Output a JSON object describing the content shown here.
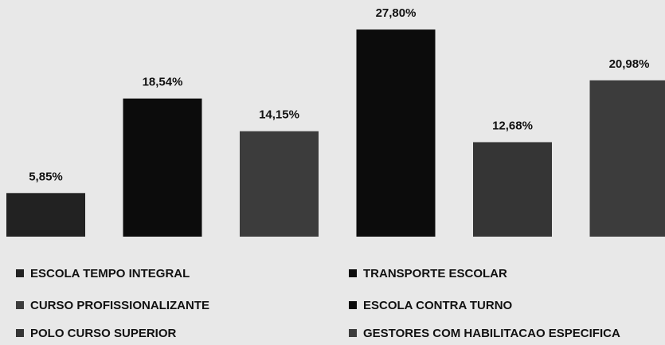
{
  "chart_data": {
    "type": "bar",
    "categories": [
      "ESCOLA TEMPO INTEGRAL",
      "TRANSPORTE ESCOLAR",
      "CURSO PROFISSIONALIZANTE",
      "ESCOLA CONTRA TURNO",
      "POLO CURSO SUPERIOR",
      "GESTORES COM HABILITACAO ESPECIFICA"
    ],
    "values": [
      5.85,
      18.54,
      14.15,
      27.8,
      12.68,
      20.98
    ],
    "value_labels": [
      "5,85%",
      "18,54%",
      "14,15%",
      "27,80%",
      "12,68%",
      "20,98%"
    ],
    "colors": [
      "#222222",
      "#0c0c0c",
      "#3c3c3c",
      "#0c0c0c",
      "#353535",
      "#3c3c3c"
    ],
    "ylim": [
      0,
      30
    ],
    "legend": "bottom"
  }
}
